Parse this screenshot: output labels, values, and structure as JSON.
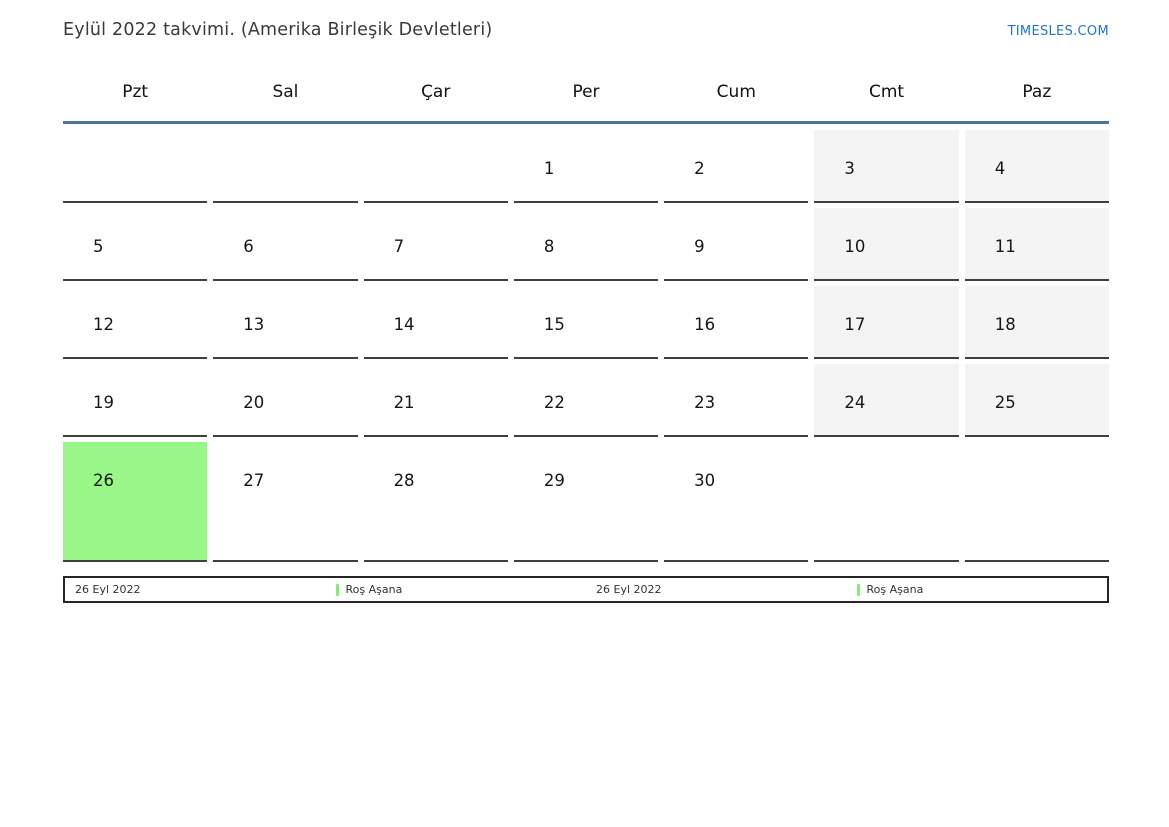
{
  "page": {
    "title": "Eylül 2022 takvimi. (Amerika Birleşik Devletleri)",
    "brand": "TIMESLES.COM"
  },
  "calendar": {
    "month": "Eylül 2022",
    "weekday_headers": [
      "Pzt",
      "Sal",
      "Çar",
      "Per",
      "Cum",
      "Cmt",
      "Paz"
    ],
    "weeks": [
      [
        "",
        "",
        "",
        "1",
        "2",
        "3",
        "4"
      ],
      [
        "5",
        "6",
        "7",
        "8",
        "9",
        "10",
        "11"
      ],
      [
        "12",
        "13",
        "14",
        "15",
        "16",
        "17",
        "18"
      ],
      [
        "19",
        "20",
        "21",
        "22",
        "23",
        "24",
        "25"
      ],
      [
        "26",
        "27",
        "28",
        "29",
        "30",
        "",
        ""
      ]
    ],
    "highlighted_day": "26",
    "colors": {
      "highlight_green": "#98f788",
      "weekend_gray": "#f4f4f4",
      "header_rule_blue": "#4e74a0",
      "brand_blue": "#2176c7",
      "event_marker_green": "#86ec78"
    }
  },
  "legend": {
    "items": [
      {
        "type": "date",
        "label": "26 Eyl 2022"
      },
      {
        "type": "event",
        "label": "Roş Aşana"
      },
      {
        "type": "date",
        "label": "26 Eyl 2022"
      },
      {
        "type": "event",
        "label": "Roş Aşana"
      }
    ]
  }
}
